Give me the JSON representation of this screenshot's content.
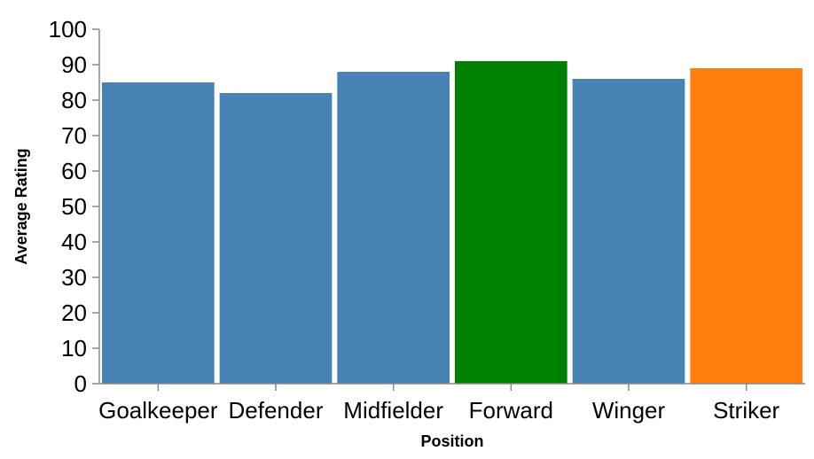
{
  "chart_data": {
    "type": "bar",
    "categories": [
      "Goalkeeper",
      "Defender",
      "Midfielder",
      "Forward",
      "Winger",
      "Striker"
    ],
    "values": [
      85,
      82,
      88,
      91,
      86,
      89
    ],
    "bar_colors": [
      "#4682b4",
      "#4682b4",
      "#4682b4",
      "#008000",
      "#4682b4",
      "#ff7f0e"
    ],
    "xlabel": "Position",
    "ylabel": "Average Rating",
    "ylim": [
      0,
      100
    ],
    "yticks": [
      0,
      10,
      20,
      30,
      40,
      50,
      60,
      70,
      80,
      90,
      100
    ],
    "grid": false,
    "legend": "none"
  }
}
